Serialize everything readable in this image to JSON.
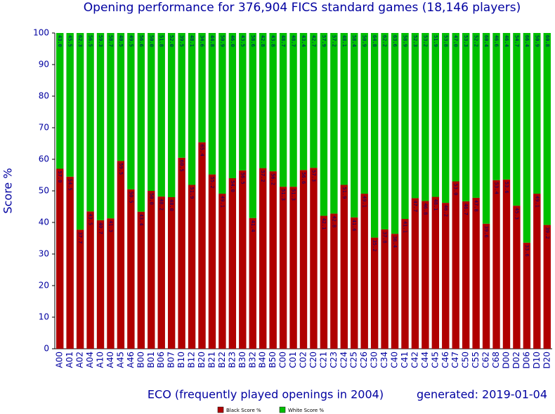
{
  "chart_data": {
    "type": "stacked_bar",
    "title": "Opening performance for 376,904 FICS standard games (18,146 players)",
    "y_label": "Score %",
    "x_label": "ECO (frequently played openings in 2004)",
    "annotation": "generated: 2019-01-04",
    "categories": [
      "A00",
      "A01",
      "A02",
      "A04",
      "A10",
      "A40",
      "A45",
      "A46",
      "B00",
      "B01",
      "B06",
      "B07",
      "B10",
      "B12",
      "B20",
      "B21",
      "B22",
      "B23",
      "B30",
      "B32",
      "B40",
      "B50",
      "C00",
      "C01",
      "C02",
      "C20",
      "C21",
      "C23",
      "C24",
      "C25",
      "C26",
      "C30",
      "C34",
      "C40",
      "C41",
      "C42",
      "C44",
      "C45",
      "C46",
      "C47",
      "C50",
      "C55",
      "C62",
      "C68",
      "D00",
      "D02",
      "D06",
      "D10",
      "D20"
    ],
    "series": [
      {
        "name": "Black Score %",
        "color": "#b00000",
        "values": [
          57.0,
          54.5,
          37.7,
          43.5,
          40.7,
          41.3,
          59.5,
          50.5,
          43.4,
          50.0,
          48.2,
          48.0,
          60.5,
          51.9,
          65.4,
          55.2,
          49.1,
          54.0,
          56.5,
          41.4,
          57.2,
          56.2,
          51.3,
          51.3,
          56.6,
          57.3,
          42.1,
          42.8,
          51.9,
          41.6,
          49.1,
          35.2,
          37.8,
          36.4,
          41.1,
          47.7,
          46.8,
          48.1,
          46.2,
          53.0,
          46.7,
          47.8,
          39.6,
          53.4,
          53.6,
          45.3,
          33.6,
          49.1,
          39.2
        ],
        "value_labels": [
          "57.0",
          "54.5",
          "37.7",
          "43.5",
          "40.7",
          "41.3",
          "59.5",
          "50.5",
          "43.4",
          "50.0",
          "48.2",
          "48.0",
          "60.5",
          "51.9",
          "65.4",
          "55.2",
          "49.1",
          "54.0",
          "56.5",
          "41.4",
          "57.2",
          "56.2",
          "51.3",
          "51.3",
          "56.6",
          "57.3",
          "42.1",
          "42.8",
          "51.9",
          "41.6",
          "49.1",
          "35.2",
          "37.8",
          "36.4",
          "41.1",
          "47.7",
          "46.8",
          "48.1",
          "46.2",
          "53.0",
          "46.7",
          "47.8",
          "39.6",
          "53.4",
          "53.6",
          "45.3",
          "33.6",
          "49.1",
          "39.2"
        ]
      },
      {
        "name": "White Score %",
        "color": "#00c000",
        "values": [
          43.0,
          45.5,
          62.3,
          56.5,
          59.3,
          58.7,
          40.5,
          49.5,
          56.6,
          50.0,
          51.8,
          52.0,
          39.5,
          48.1,
          34.6,
          44.8,
          50.9,
          46.0,
          43.5,
          58.6,
          42.8,
          43.8,
          48.7,
          48.7,
          43.4,
          42.7,
          57.9,
          57.2,
          48.1,
          58.4,
          50.9,
          64.8,
          62.2,
          63.6,
          58.9,
          52.3,
          53.2,
          51.9,
          53.8,
          47.0,
          53.3,
          52.2,
          60.4,
          46.6,
          46.4,
          54.7,
          66.4,
          50.9,
          60.8
        ],
        "value_labels": [
          "43.0",
          "45.5",
          "62.3",
          "56.5",
          "59.3",
          "58.7",
          "40.5",
          "49.5",
          "56.6",
          "50.0",
          "51.8",
          "52.0",
          "39.5",
          "48.1",
          "34.6",
          "44.8",
          "50.9",
          "46.0",
          "43.5",
          "58.6",
          "42.8",
          "43.8",
          "48.7",
          "48.7",
          "43.4",
          "42.7",
          "57.9",
          "57.2",
          "48.1",
          "58.4",
          "50.9",
          "64.8",
          "62.2",
          "63.6",
          "58.9",
          "52.3",
          "53.2",
          "51.9",
          "53.8",
          "47.0",
          "53.3",
          "52.2",
          "60.4",
          "46.6",
          "46.4",
          "54.7",
          "66.4",
          "50.9",
          "60.8"
        ]
      }
    ],
    "ylim": [
      0,
      100
    ],
    "yticks": [
      0,
      10,
      20,
      30,
      40,
      50,
      60,
      70,
      80,
      90,
      100
    ]
  }
}
